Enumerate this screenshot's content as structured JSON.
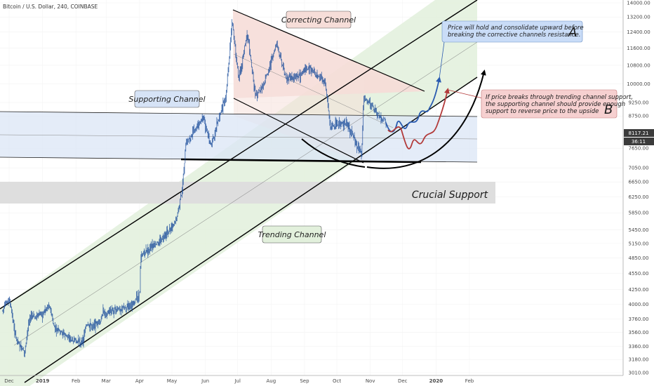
{
  "header": {
    "symbol_line": "Bitcoin / U.S. Dollar, 240, COINBASE"
  },
  "chart_data": {
    "type": "candlestick",
    "title": "Bitcoin / U.S. Dollar, 240, COINBASE",
    "x_axis": {
      "tick_labels": [
        "Dec",
        "2019",
        "Feb",
        "Mar",
        "Apr",
        "May",
        "Jun",
        "Jul",
        "Aug",
        "Sep",
        "Oct",
        "Nov",
        "Dec",
        "2020",
        "Feb"
      ]
    },
    "y_axis": {
      "scale": "log",
      "tick_labels": [
        "14000.00",
        "13200.00",
        "12400.00",
        "11600.00",
        "10800.00",
        "10000.00",
        "9250.00",
        "8750.00",
        "7650.00",
        "7050.00",
        "6650.00",
        "6250.00",
        "5850.00",
        "5450.00",
        "5150.00",
        "4850.00",
        "4550.00",
        "4250.00",
        "4000.00",
        "3760.00",
        "3560.00",
        "3360.00",
        "3180.00",
        "3010.00"
      ],
      "range": [
        3010,
        14000
      ]
    },
    "price_path": [
      [
        "2018-11-25",
        3900
      ],
      [
        "2018-12-01",
        4100
      ],
      [
        "2018-12-07",
        3500
      ],
      [
        "2018-12-15",
        3250
      ],
      [
        "2018-12-20",
        3800
      ],
      [
        "2018-12-26",
        3800
      ],
      [
        "2019-01-01",
        3850
      ],
      [
        "2019-01-07",
        4000
      ],
      [
        "2019-01-12",
        3620
      ],
      [
        "2019-01-20",
        3550
      ],
      [
        "2019-01-28",
        3450
      ],
      [
        "2019-02-07",
        3400
      ],
      [
        "2019-02-10",
        3650
      ],
      [
        "2019-02-24",
        3700
      ],
      [
        "2019-02-25",
        3850
      ],
      [
        "2019-03-10",
        3900
      ],
      [
        "2019-03-25",
        4000
      ],
      [
        "2019-04-01",
        4150
      ],
      [
        "2019-04-02",
        4900
      ],
      [
        "2019-04-15",
        5100
      ],
      [
        "2019-04-25",
        5300
      ],
      [
        "2019-05-05",
        5700
      ],
      [
        "2019-05-10",
        6300
      ],
      [
        "2019-05-14",
        7800
      ],
      [
        "2019-05-20",
        8100
      ],
      [
        "2019-05-30",
        8700
      ],
      [
        "2019-06-06",
        7700
      ],
      [
        "2019-06-15",
        8800
      ],
      [
        "2019-06-20",
        9500
      ],
      [
        "2019-06-26",
        13000
      ],
      [
        "2019-06-28",
        11800
      ],
      [
        "2019-07-02",
        10200
      ],
      [
        "2019-07-10",
        12400
      ],
      [
        "2019-07-17",
        9600
      ],
      [
        "2019-07-24",
        9800
      ],
      [
        "2019-08-06",
        11800
      ],
      [
        "2019-08-15",
        10200
      ],
      [
        "2019-08-25",
        10300
      ],
      [
        "2019-09-05",
        10700
      ],
      [
        "2019-09-20",
        10100
      ],
      [
        "2019-09-25",
        8400
      ],
      [
        "2019-10-10",
        8500
      ],
      [
        "2019-10-24",
        7450
      ],
      [
        "2019-10-26",
        9500
      ],
      [
        "2019-11-01",
        9200
      ],
      [
        "2019-11-08",
        8800
      ],
      [
        "2019-11-16",
        8500
      ]
    ],
    "current_price_label": "8117.21",
    "countdown_label": "36:11",
    "annotations": {
      "correcting_channel": "Correcting Channel",
      "supporting_channel": "Supporting Channel",
      "trending_channel": "Trending Channel",
      "crucial_support": "Crucial Support",
      "scenario_a_text_1": "Price will hold and consolidate upward before",
      "scenario_a_text_2": "breaking the corrective channels resistance.",
      "scenario_a_letter": "A",
      "scenario_b_text_1": "If price breaks through trending channel support,",
      "scenario_b_text_2": "the supporting channel should provide enough",
      "scenario_b_text_3": "support to reverse price to the upside",
      "scenario_b_letter": "B"
    },
    "colors": {
      "candles": "#1e4f9c",
      "correcting_fill": "#f6ddd8",
      "supporting_fill": "#e3ebf7",
      "trending_fill": "#e2f0dc",
      "crucial_band": "#dedede",
      "scenario_a": "#2a5bb0",
      "scenario_b": "#b23a3a",
      "annotation_a_bg": "#c9dcf7",
      "annotation_b_bg": "#f6d0d0"
    }
  }
}
